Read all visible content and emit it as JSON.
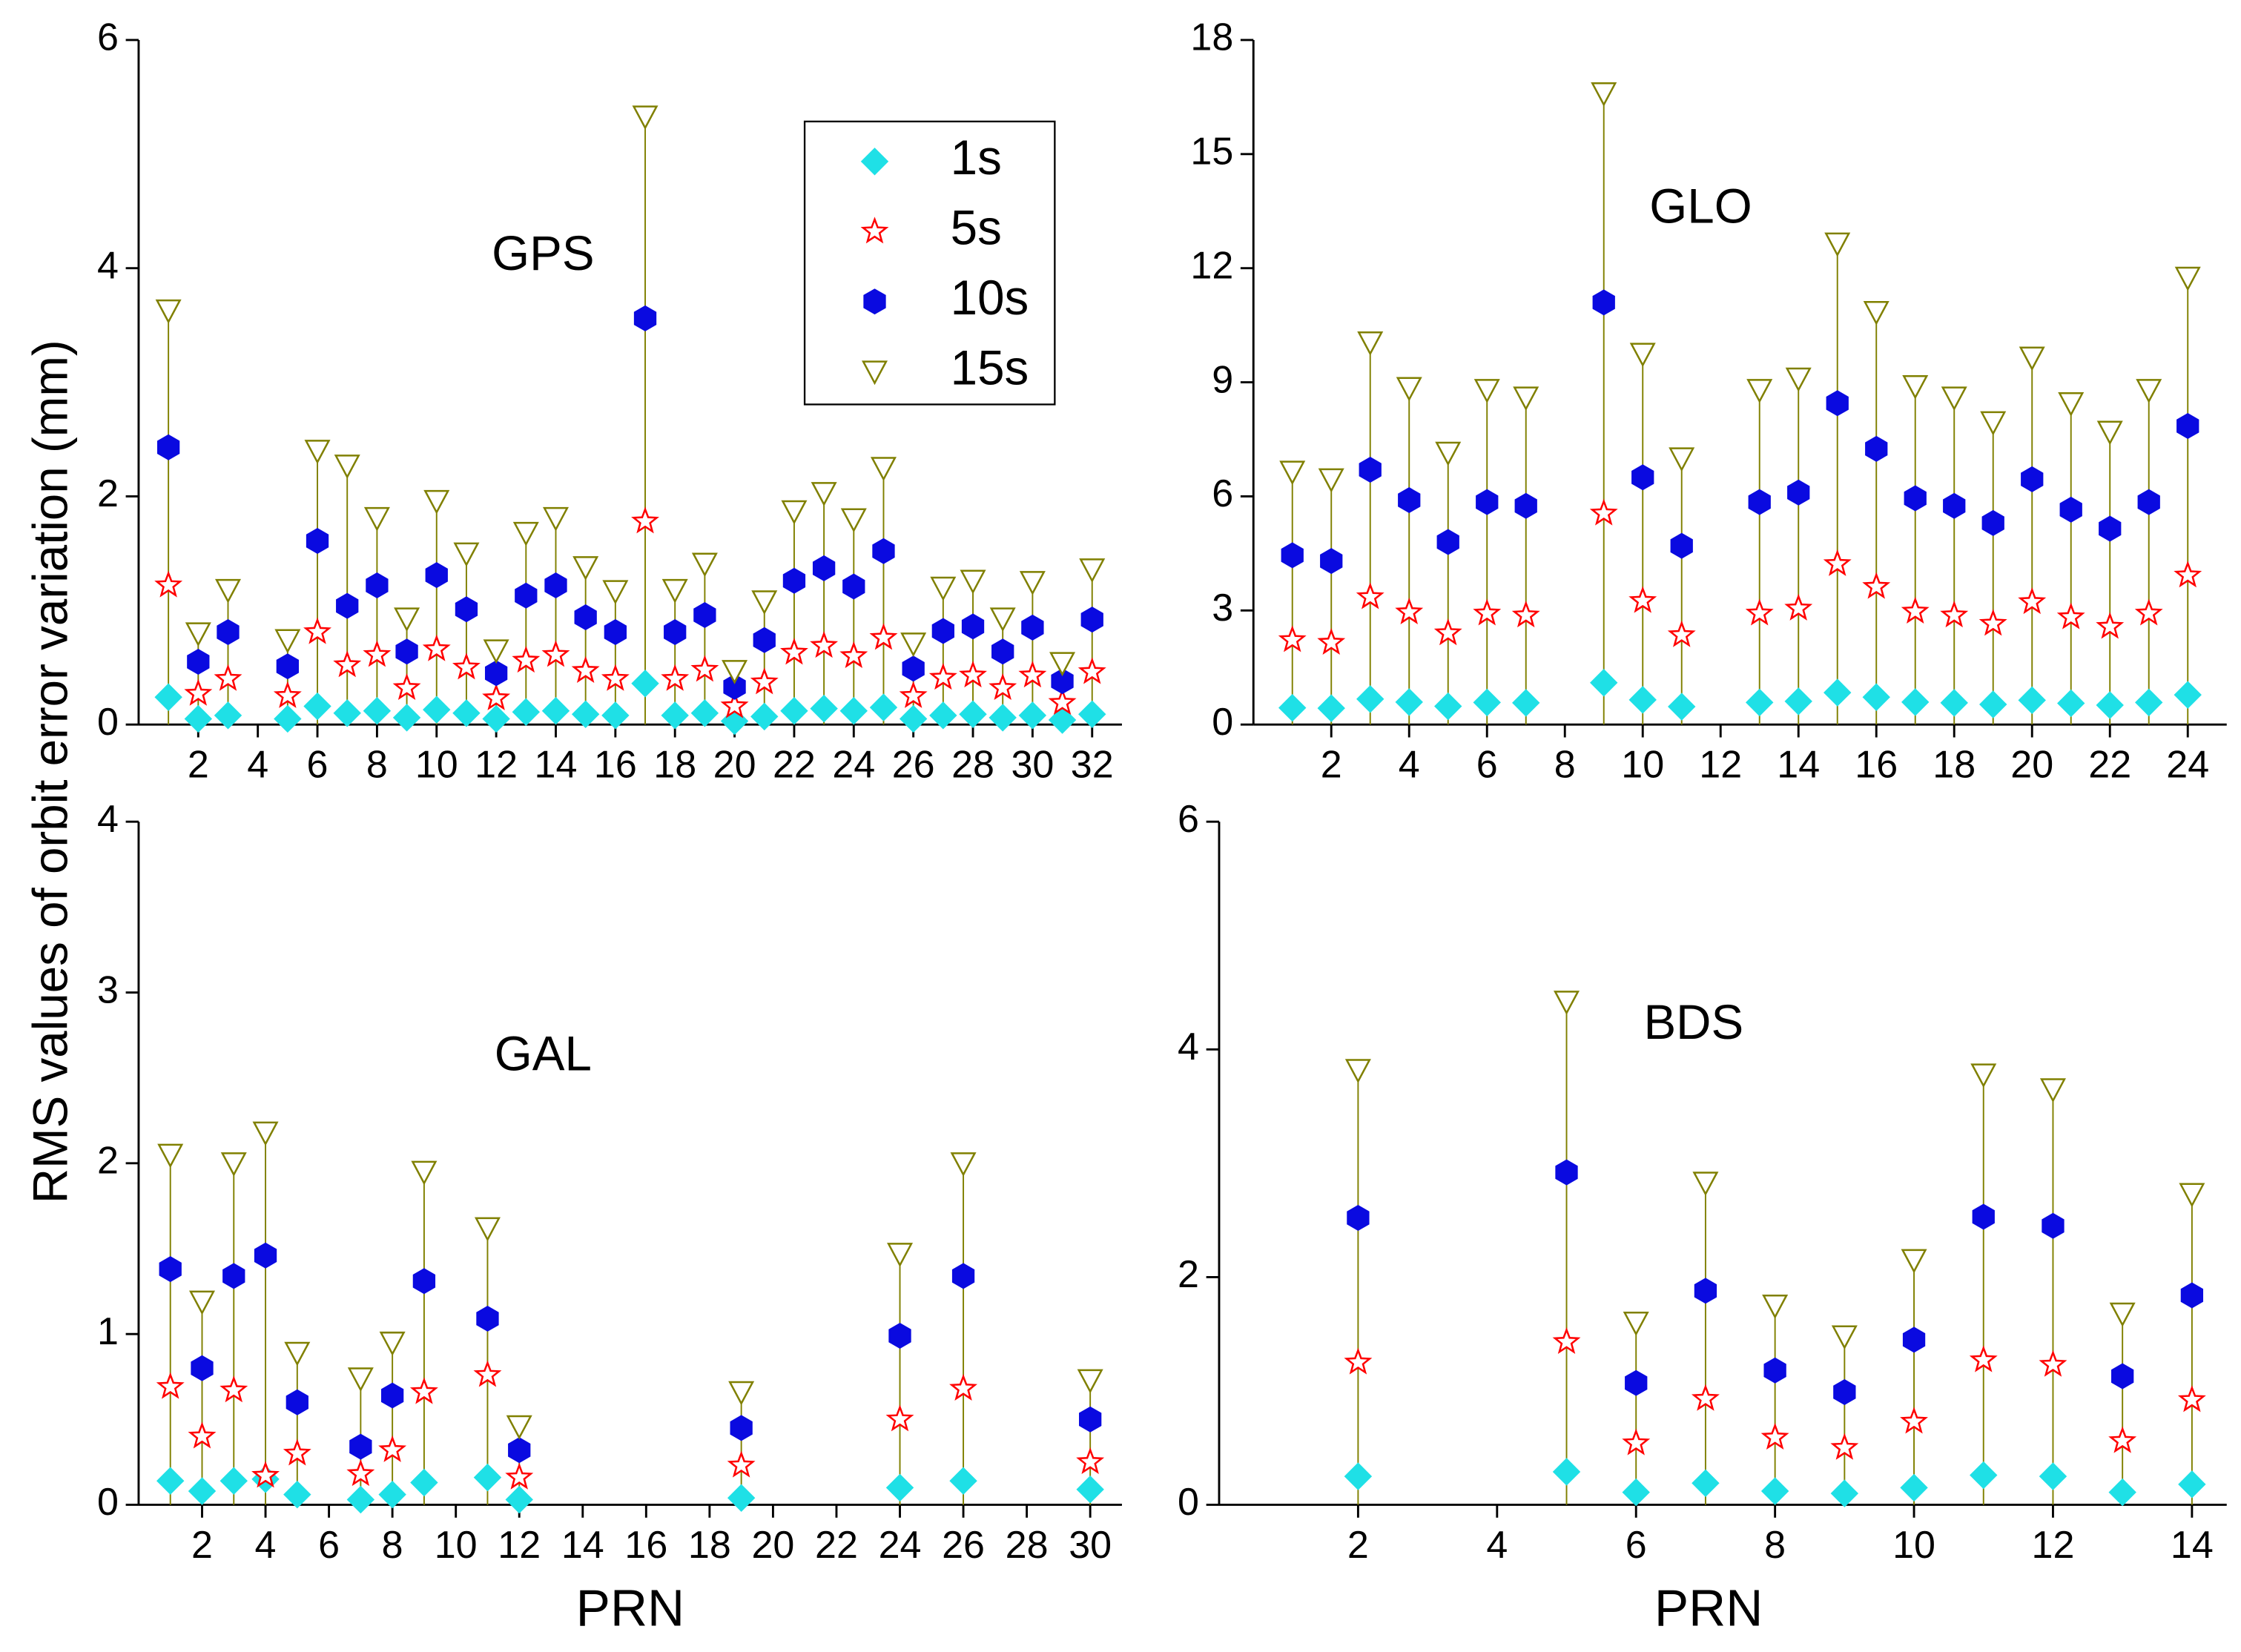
{
  "chart_data": [
    {
      "type": "scatter",
      "title": "GPS",
      "y_label": "RMS values of orbit error variation (mm)",
      "x": [
        1,
        2,
        3,
        5,
        6,
        7,
        8,
        9,
        10,
        11,
        12,
        13,
        14,
        15,
        16,
        17,
        18,
        19,
        20,
        21,
        22,
        23,
        24,
        25,
        26,
        27,
        28,
        29,
        30,
        31,
        32
      ],
      "xlim": [
        0,
        33
      ],
      "xticks": [
        2,
        4,
        6,
        8,
        10,
        12,
        14,
        16,
        18,
        20,
        22,
        24,
        26,
        28,
        30,
        32
      ],
      "ylim": [
        0,
        6
      ],
      "yticks": [
        0,
        2,
        4,
        6
      ],
      "drop_line_color": "#808000",
      "legend": "upper right",
      "series": [
        {
          "name": "1s",
          "color": "#1fe0e6",
          "marker": "diamond",
          "values": [
            0.24,
            0.05,
            0.08,
            0.05,
            0.16,
            0.1,
            0.12,
            0.06,
            0.13,
            0.1,
            0.05,
            0.11,
            0.12,
            0.09,
            0.08,
            0.36,
            0.08,
            0.1,
            0.03,
            0.07,
            0.12,
            0.14,
            0.12,
            0.15,
            0.05,
            0.08,
            0.09,
            0.06,
            0.08,
            0.04,
            0.09
          ]
        },
        {
          "name": "5s",
          "color": "#ff0000",
          "marker": "star",
          "values": [
            1.22,
            0.27,
            0.4,
            0.25,
            0.81,
            0.52,
            0.61,
            0.32,
            0.66,
            0.5,
            0.23,
            0.56,
            0.61,
            0.47,
            0.4,
            1.78,
            0.4,
            0.48,
            0.16,
            0.37,
            0.63,
            0.69,
            0.6,
            0.76,
            0.25,
            0.41,
            0.43,
            0.32,
            0.43,
            0.19,
            0.46
          ]
        },
        {
          "name": "10s",
          "color": "#0a0ae0",
          "marker": "hexagon",
          "values": [
            2.43,
            0.55,
            0.81,
            0.51,
            1.61,
            1.04,
            1.22,
            0.64,
            1.31,
            1.01,
            0.45,
            1.13,
            1.22,
            0.94,
            0.81,
            3.56,
            0.81,
            0.96,
            0.33,
            0.74,
            1.26,
            1.37,
            1.21,
            1.52,
            0.49,
            0.82,
            0.86,
            0.64,
            0.85,
            0.38,
            0.92
          ]
        },
        {
          "name": "15s",
          "color": "#808000",
          "marker": "triangle-down",
          "values": [
            3.63,
            0.8,
            1.18,
            0.74,
            2.4,
            2.27,
            1.81,
            0.93,
            1.96,
            1.5,
            0.65,
            1.68,
            1.81,
            1.38,
            1.17,
            5.33,
            1.18,
            1.41,
            0.47,
            1.08,
            1.87,
            2.03,
            1.8,
            2.25,
            0.71,
            1.2,
            1.26,
            0.93,
            1.25,
            0.54,
            1.36
          ]
        }
      ]
    },
    {
      "type": "scatter",
      "title": "GLO",
      "x": [
        1,
        2,
        3,
        4,
        5,
        6,
        7,
        9,
        10,
        11,
        13,
        14,
        15,
        16,
        17,
        18,
        19,
        20,
        21,
        22,
        23,
        24
      ],
      "xlim": [
        0,
        25
      ],
      "xticks": [
        2,
        4,
        6,
        8,
        10,
        12,
        14,
        16,
        18,
        20,
        22,
        24
      ],
      "ylim": [
        0,
        18
      ],
      "yticks": [
        0,
        3,
        6,
        9,
        12,
        15,
        18
      ],
      "drop_line_color": "#808000",
      "series": [
        {
          "color": "#1fe0e6",
          "marker": "diamond",
          "values": [
            0.44,
            0.43,
            0.67,
            0.59,
            0.48,
            0.58,
            0.57,
            1.1,
            0.65,
            0.47,
            0.58,
            0.61,
            0.84,
            0.72,
            0.59,
            0.57,
            0.53,
            0.64,
            0.56,
            0.51,
            0.58,
            0.78
          ]
        },
        {
          "color": "#ff0000",
          "marker": "star",
          "values": [
            2.22,
            2.15,
            3.35,
            2.95,
            2.4,
            2.92,
            2.87,
            5.55,
            3.25,
            2.35,
            2.92,
            3.05,
            4.22,
            3.62,
            2.97,
            2.87,
            2.65,
            3.22,
            2.82,
            2.57,
            2.92,
            3.92
          ]
        },
        {
          "color": "#0a0ae0",
          "marker": "hexagon",
          "values": [
            4.45,
            4.3,
            6.7,
            5.9,
            4.8,
            5.85,
            5.75,
            11.1,
            6.5,
            4.7,
            5.85,
            6.1,
            8.45,
            7.25,
            5.95,
            5.75,
            5.3,
            6.45,
            5.65,
            5.15,
            5.85,
            7.85
          ]
        },
        {
          "color": "#808000",
          "marker": "triangle-down",
          "values": [
            6.65,
            6.45,
            10.05,
            8.85,
            7.15,
            8.8,
            8.6,
            16.6,
            9.75,
            7,
            8.8,
            9.1,
            12.65,
            10.85,
            8.9,
            8.6,
            7.95,
            9.65,
            8.45,
            7.7,
            8.8,
            11.75
          ]
        }
      ]
    },
    {
      "type": "scatter",
      "title": "GAL",
      "x_label": "PRN",
      "x": [
        1,
        2,
        3,
        4,
        5,
        7,
        8,
        9,
        11,
        12,
        19,
        24,
        26,
        30
      ],
      "xlim": [
        0,
        31
      ],
      "xticks": [
        2,
        4,
        6,
        8,
        10,
        12,
        14,
        16,
        18,
        20,
        22,
        24,
        26,
        28,
        30
      ],
      "ylim": [
        0,
        4
      ],
      "yticks": [
        0,
        1,
        2,
        3,
        4
      ],
      "drop_line_color": "#808000",
      "series": [
        {
          "color": "#1fe0e6",
          "marker": "diamond",
          "values": [
            0.14,
            0.08,
            0.14,
            0.15,
            0.06,
            0.03,
            0.06,
            0.13,
            0.16,
            0.03,
            0.04,
            0.1,
            0.14,
            0.09
          ]
        },
        {
          "color": "#ff0000",
          "marker": "star",
          "values": [
            0.69,
            0.4,
            0.67,
            0.17,
            0.3,
            0.18,
            0.32,
            0.66,
            0.76,
            0.16,
            0.23,
            0.5,
            0.68,
            0.25
          ]
        },
        {
          "color": "#0a0ae0",
          "marker": "hexagon",
          "values": [
            1.38,
            0.8,
            1.34,
            1.46,
            0.6,
            0.34,
            0.64,
            1.31,
            1.09,
            0.32,
            0.45,
            0.99,
            1.34,
            0.5
          ]
        },
        {
          "color": "#808000",
          "marker": "triangle-down",
          "values": [
            2.05,
            1.19,
            2.0,
            2.18,
            0.89,
            0.74,
            0.95,
            1.95,
            1.62,
            0.46,
            0.66,
            1.47,
            2.0,
            0.73
          ]
        }
      ]
    },
    {
      "type": "scatter",
      "title": "BDS",
      "x_label": "PRN",
      "x": [
        2,
        5,
        6,
        7,
        8,
        9,
        10,
        11,
        12,
        13,
        14
      ],
      "xlim": [
        0,
        14.5
      ],
      "xticks": [
        2,
        4,
        6,
        8,
        10,
        12,
        14
      ],
      "ylim": [
        0,
        6
      ],
      "yticks": [
        0,
        2,
        4,
        6
      ],
      "drop_line_color": "#808000",
      "series": [
        {
          "color": "#1fe0e6",
          "marker": "diamond",
          "values": [
            0.25,
            0.29,
            0.11,
            0.19,
            0.12,
            0.1,
            0.15,
            0.26,
            0.25,
            0.11,
            0.18
          ]
        },
        {
          "color": "#ff0000",
          "marker": "star",
          "values": [
            1.25,
            1.43,
            0.54,
            0.93,
            0.59,
            0.5,
            0.73,
            1.27,
            1.23,
            0.56,
            0.92
          ]
        },
        {
          "color": "#0a0ae0",
          "marker": "hexagon",
          "values": [
            2.52,
            2.92,
            1.07,
            1.88,
            1.18,
            0.99,
            1.45,
            2.53,
            2.45,
            1.13,
            1.84
          ]
        },
        {
          "color": "#808000",
          "marker": "triangle-down",
          "values": [
            3.82,
            4.42,
            1.6,
            2.83,
            1.75,
            1.48,
            2.15,
            3.78,
            3.65,
            1.68,
            2.73
          ]
        }
      ]
    }
  ]
}
